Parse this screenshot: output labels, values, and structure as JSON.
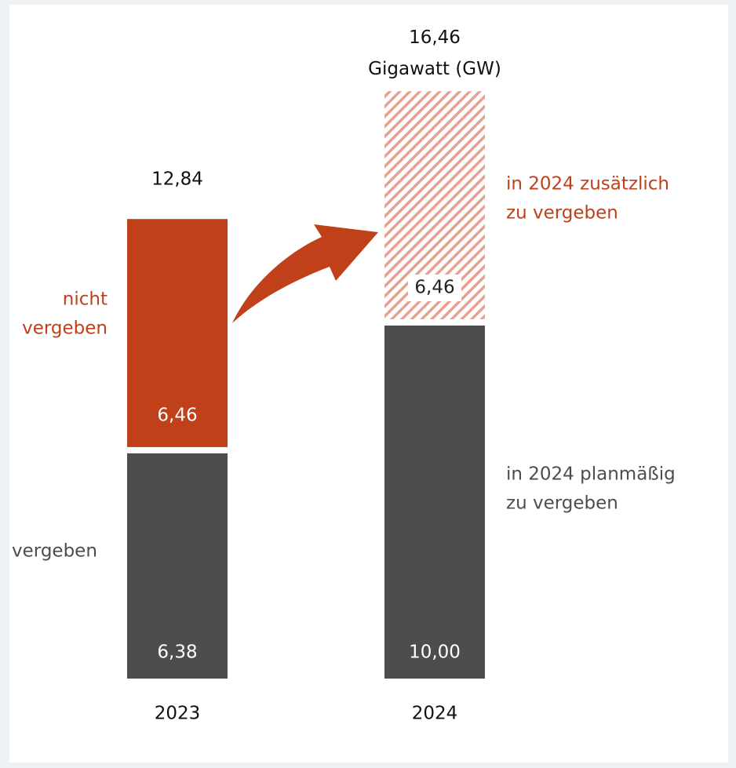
{
  "chart_data": {
    "type": "stacked_bar",
    "categories": [
      "2023",
      "2024"
    ],
    "series": [
      {
        "values": [
          6.38,
          10.0
        ],
        "value_labels": [
          "6,38",
          "10,00"
        ],
        "color": "#4d4d4d"
      },
      {
        "values": [
          6.46,
          6.46
        ],
        "value_labels": [
          "6,46",
          "6,46"
        ],
        "color": "#c0401a",
        "hatched": [
          false,
          true
        ]
      }
    ],
    "totals": [
      12.84,
      16.46
    ],
    "total_labels": [
      "12,84",
      "16,46"
    ],
    "unit": "Gigawatt (GW)",
    "annotations": [
      {
        "lines": [
          "nicht",
          "vergeben"
        ],
        "color": "#c0401a"
      },
      {
        "lines": [
          "vergeben"
        ],
        "color": "#4d4d4d"
      },
      {
        "lines": [
          "in 2024 zusätzlich",
          "zu vergeben"
        ],
        "color": "#c0401a"
      },
      {
        "lines": [
          "in 2024 planmäßig",
          "zu vergeben"
        ],
        "color": "#4d4d4d"
      }
    ]
  }
}
